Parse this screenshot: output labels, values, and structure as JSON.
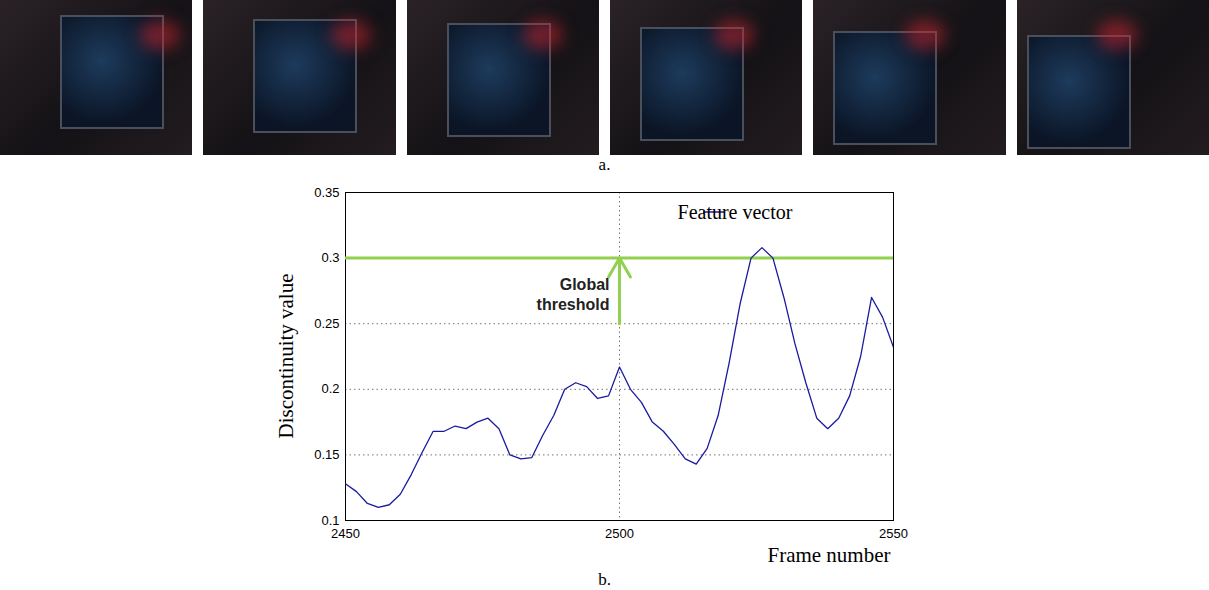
{
  "figure": {
    "panel_labels": [
      "a.",
      "b."
    ],
    "photos": 6
  },
  "chart_data": {
    "type": "line",
    "x_label": "Frame number",
    "y_label": "Discontinuity value",
    "x": [
      2450,
      2452,
      2454,
      2456,
      2458,
      2460,
      2462,
      2464,
      2466,
      2468,
      2470,
      2472,
      2474,
      2476,
      2478,
      2480,
      2482,
      2484,
      2486,
      2488,
      2490,
      2492,
      2494,
      2496,
      2498,
      2500,
      2502,
      2504,
      2506,
      2508,
      2510,
      2512,
      2514,
      2516,
      2518,
      2520,
      2522,
      2524,
      2526,
      2528,
      2530,
      2532,
      2534,
      2536,
      2538,
      2540,
      2542,
      2544,
      2546,
      2548,
      2550
    ],
    "series": [
      {
        "name": "Feature vector",
        "color": "#1a1aa0",
        "values": [
          0.128,
          0.122,
          0.113,
          0.11,
          0.112,
          0.12,
          0.135,
          0.152,
          0.168,
          0.168,
          0.172,
          0.17,
          0.175,
          0.178,
          0.17,
          0.15,
          0.147,
          0.148,
          0.165,
          0.18,
          0.2,
          0.205,
          0.202,
          0.193,
          0.195,
          0.217,
          0.2,
          0.19,
          0.175,
          0.168,
          0.158,
          0.147,
          0.143,
          0.155,
          0.18,
          0.22,
          0.265,
          0.3,
          0.308,
          0.3,
          0.27,
          0.235,
          0.205,
          0.178,
          0.17,
          0.178,
          0.195,
          0.225,
          0.27,
          0.255,
          0.232
        ]
      }
    ],
    "xlim": [
      2450,
      2550
    ],
    "ylim": [
      0.1,
      0.35
    ],
    "xticks": [
      2450,
      2500,
      2550
    ],
    "yticks": [
      0.1,
      0.15,
      0.2,
      0.25,
      0.3,
      0.35
    ],
    "grid": true,
    "legend": "upper right",
    "threshold": {
      "label": "Global threshold",
      "value": 0.3,
      "color": "#92d050",
      "arrow_from": 0.25,
      "arrow_x": 2500
    }
  }
}
